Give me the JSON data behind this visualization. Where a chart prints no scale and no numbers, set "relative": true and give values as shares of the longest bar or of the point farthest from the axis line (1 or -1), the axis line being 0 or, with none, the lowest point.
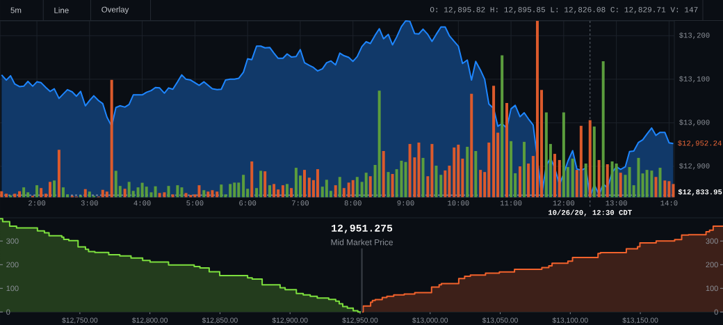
{
  "chart_data": [
    {
      "type": "area",
      "color": "#1e86ff",
      "x": [
        1.33,
        1.42,
        1.5,
        1.58,
        1.67,
        1.75,
        1.83,
        1.92,
        2,
        2.08,
        2.17,
        2.25,
        2.33,
        2.42,
        2.5,
        2.58,
        2.67,
        2.75,
        2.83,
        2.92,
        3,
        3.08,
        3.17,
        3.25,
        3.33,
        3.42,
        3.5,
        3.58,
        3.67,
        3.75,
        3.83,
        3.92,
        4,
        4.08,
        4.17,
        4.25,
        4.33,
        4.42,
        4.5,
        4.58,
        4.67,
        4.75,
        4.83,
        4.92,
        5,
        5.08,
        5.17,
        5.25,
        5.33,
        5.42,
        5.5,
        5.58,
        5.67,
        5.75,
        5.83,
        5.92,
        6,
        6.08,
        6.17,
        6.25,
        6.33,
        6.42,
        6.5,
        6.58,
        6.67,
        6.75,
        6.83,
        6.92,
        7,
        7.08,
        7.17,
        7.25,
        7.33,
        7.42,
        7.5,
        7.58,
        7.67,
        7.75,
        7.83,
        7.92,
        8,
        8.08,
        8.17,
        8.25,
        8.33,
        8.42,
        8.5,
        8.58,
        8.67,
        8.75,
        8.83,
        8.92,
        9,
        9.08,
        9.17,
        9.25,
        9.33,
        9.42,
        9.5,
        9.58,
        9.67,
        9.75,
        9.83,
        9.92,
        10,
        10.08,
        10.17,
        10.25,
        10.33,
        10.42,
        10.5,
        10.58,
        10.67,
        10.75,
        10.83,
        10.92,
        11,
        11.08,
        11.17,
        11.25,
        11.33,
        11.42,
        11.5,
        11.58,
        11.67,
        11.75,
        11.83,
        11.92,
        12,
        12.08,
        12.17,
        12.25,
        12.33,
        12.42,
        12.5,
        12.58,
        12.67,
        12.75,
        12.83,
        12.92,
        13,
        13.08,
        13.17,
        13.25,
        13.33,
        13.42,
        13.5,
        13.58,
        13.67,
        13.75,
        13.83,
        13.92,
        14,
        14.08
      ],
      "values": [
        13110,
        13098,
        13108,
        13089,
        13083,
        13084,
        13095,
        13084,
        13094,
        13092,
        13081,
        13072,
        13078,
        13056,
        13066,
        13076,
        13071,
        13061,
        13072,
        13039,
        13051,
        13062,
        13051,
        13044,
        13013,
        12992,
        13035,
        13039,
        13036,
        13042,
        13064,
        13064,
        13064,
        13070,
        13074,
        13081,
        13080,
        13068,
        13080,
        13077,
        13094,
        13110,
        13100,
        13098,
        13092,
        13086,
        13094,
        13086,
        13078,
        13076,
        13077,
        13098,
        13100,
        13100,
        13102,
        13116,
        13147,
        13145,
        13176,
        13176,
        13172,
        13173,
        13160,
        13148,
        13148,
        13158,
        13151,
        13152,
        13168,
        13138,
        13132,
        13127,
        13119,
        13124,
        13138,
        13142,
        13133,
        13160,
        13154,
        13150,
        13141,
        13152,
        13175,
        13186,
        13182,
        13201,
        13216,
        13193,
        13203,
        13179,
        13197,
        13221,
        13234,
        13233,
        13205,
        13204,
        13215,
        13203,
        13187,
        13203,
        13220,
        13220,
        13200,
        13187,
        13176,
        13136,
        13144,
        13098,
        13141,
        13121,
        13100,
        13043,
        13033,
        12992,
        12998,
        12988,
        13032,
        13040,
        13014,
        13023,
        13009,
        12995,
        12918,
        12834,
        12902,
        12919,
        12896,
        12858,
        12883,
        12912,
        12936,
        12894,
        12891,
        12896,
        12830,
        12858,
        12835,
        12859,
        12851,
        12886,
        12899,
        12893,
        12899,
        12934,
        12935,
        12955,
        12961,
        12974,
        12988,
        12971,
        12978,
        12978,
        12954,
        12952.24
      ],
      "xlim": [
        1.3,
        14.1
      ],
      "ylim": [
        12829,
        13234
      ],
      "xticks": [
        {
          "value": 2,
          "label": "2:00"
        },
        {
          "value": 3,
          "label": "3:00"
        },
        {
          "value": 4,
          "label": "4:00"
        },
        {
          "value": 5,
          "label": "5:00"
        },
        {
          "value": 6,
          "label": "6:00"
        },
        {
          "value": 7,
          "label": "7:00"
        },
        {
          "value": 8,
          "label": "8:00"
        },
        {
          "value": 9,
          "label": "9:00"
        },
        {
          "value": 10,
          "label": "10:00"
        },
        {
          "value": 11,
          "label": "11:00"
        },
        {
          "value": 12,
          "label": "12:00"
        },
        {
          "value": 13,
          "label": "13:00"
        },
        {
          "value": 14,
          "label": "14:0"
        }
      ],
      "yticks": [
        {
          "value": 12900,
          "label": "$12,900"
        },
        {
          "value": 13000,
          "label": "$13,000"
        },
        {
          "value": 13100,
          "label": "$13,100"
        },
        {
          "value": 13200,
          "label": "$13,200"
        }
      ],
      "grid": true,
      "ref_lines": [
        {
          "axis": "y",
          "value": 12833.95,
          "label": "$12,833.95",
          "color": "#b9bdc3",
          "line_style": "dashed"
        },
        {
          "axis": "x",
          "value": 12.5,
          "label": "10/26/20, 12:30 CDT",
          "color": "#5f6670",
          "line_style": "dashed"
        }
      ],
      "annotations": [
        "5m",
        "Line",
        "Overlay",
        "O: 12,895.82 H: 12,895.85 L: 12,826.08 C: 12,829.71 V: 147",
        {
          "text": "$12,952.24",
          "x": 14.08,
          "y": 12952.24
        }
      ]
    },
    {
      "type": "bar",
      "relative": true,
      "x": [
        1.33,
        1.42,
        1.5,
        1.58,
        1.67,
        1.75,
        1.83,
        1.92,
        2,
        2.08,
        2.17,
        2.25,
        2.33,
        2.42,
        2.5,
        2.58,
        2.67,
        2.75,
        2.83,
        2.92,
        3,
        3.08,
        3.17,
        3.25,
        3.33,
        3.42,
        3.5,
        3.58,
        3.67,
        3.75,
        3.83,
        3.92,
        4,
        4.08,
        4.17,
        4.25,
        4.33,
        4.42,
        4.5,
        4.58,
        4.67,
        4.75,
        4.83,
        4.92,
        5,
        5.08,
        5.17,
        5.25,
        5.33,
        5.42,
        5.5,
        5.58,
        5.67,
        5.75,
        5.83,
        5.92,
        6,
        6.08,
        6.17,
        6.25,
        6.33,
        6.42,
        6.5,
        6.58,
        6.67,
        6.75,
        6.83,
        6.92,
        7,
        7.08,
        7.17,
        7.25,
        7.33,
        7.42,
        7.5,
        7.58,
        7.67,
        7.75,
        7.83,
        7.92,
        8,
        8.08,
        8.17,
        8.25,
        8.33,
        8.42,
        8.5,
        8.58,
        8.67,
        8.75,
        8.83,
        8.92,
        9,
        9.08,
        9.17,
        9.25,
        9.33,
        9.42,
        9.5,
        9.58,
        9.67,
        9.75,
        9.83,
        9.92,
        10,
        10.08,
        10.17,
        10.25,
        10.33,
        10.42,
        10.5,
        10.58,
        10.67,
        10.75,
        10.83,
        10.92,
        11,
        11.08,
        11.17,
        11.25,
        11.33,
        11.42,
        11.5,
        11.58,
        11.67,
        11.75,
        11.83,
        11.92,
        12,
        12.08,
        12.17,
        12.25,
        12.33,
        12.42,
        12.5,
        12.58,
        12.67,
        12.75,
        12.83,
        12.92,
        13,
        13.08,
        13.17,
        13.25,
        13.33,
        13.42,
        13.5,
        13.58,
        13.67,
        13.75,
        13.83,
        13.92,
        14,
        14.08
      ],
      "values": [
        0.034,
        0.02,
        0.011,
        0.02,
        0.034,
        0.056,
        0.028,
        0.008,
        0.068,
        0.052,
        0.02,
        0.087,
        0.095,
        0.269,
        0.056,
        0.016,
        0.008,
        0.004,
        0.011,
        0.046,
        0.032,
        0.008,
        0.004,
        0.042,
        0.032,
        0.666,
        0.15,
        0.064,
        0.048,
        0.087,
        0.036,
        0.056,
        0.082,
        0.06,
        0.028,
        0.062,
        0.024,
        0.028,
        0.064,
        0.016,
        0.068,
        0.056,
        0.024,
        0.013,
        0.016,
        0.068,
        0.04,
        0.032,
        0.04,
        0.032,
        0.072,
        0.016,
        0.075,
        0.083,
        0.083,
        0.127,
        0.048,
        0.203,
        0.052,
        0.15,
        0.147,
        0.068,
        0.075,
        0.044,
        0.068,
        0.075,
        0.052,
        0.167,
        0.123,
        0.155,
        0.111,
        0.097,
        0.159,
        0.06,
        0.099,
        0.036,
        0.068,
        0.115,
        0.052,
        0.083,
        0.097,
        0.115,
        0.087,
        0.139,
        0.119,
        0.183,
        0.604,
        0.262,
        0.143,
        0.132,
        0.159,
        0.207,
        0.2,
        0.302,
        0.226,
        0.31,
        0.223,
        0.119,
        0.302,
        0.179,
        0.127,
        0.152,
        0.179,
        0.282,
        0.298,
        0.219,
        0.286,
        0.587,
        0.262,
        0.155,
        0.143,
        0.31,
        0.632,
        0.366,
        0.805,
        0.534,
        0.318,
        0.136,
        0.175,
        0.314,
        0.191,
        0.234,
        1,
        0.608,
        0.481,
        0.302,
        0.246,
        0.211,
        0.481,
        0.171,
        0.219,
        0.155,
        0.405,
        0.191,
        0.437,
        0.401,
        0.211,
        0.771,
        0.187,
        0.203,
        0.191,
        0.139,
        0.127,
        0.171,
        0.068,
        0.223,
        0.135,
        0.155,
        0.151,
        0.115,
        0.167,
        0.095,
        0.091,
        0.075
      ],
      "colors": [
        "#dc5a2c",
        "#dc5a2c",
        "#5b9d3d",
        "#dc5a2c",
        "#dc5a2c",
        "#5b9d3d",
        "#5b9d3d",
        "#dc5a2c",
        "#5b9d3d",
        "#dc5a2c",
        "#dc5a2c",
        "#dc5a2c",
        "#5b9d3d",
        "#dc5a2c",
        "#5b9d3d",
        "#5b9d3d",
        "#dc5a2c",
        "#dc5a2c",
        "#5b9d3d",
        "#dc5a2c",
        "#5b9d3d",
        "#5b9d3d",
        "#dc5a2c",
        "#dc5a2c",
        "#dc5a2c",
        "#dc5a2c",
        "#5b9d3d",
        "#5b9d3d",
        "#dc5a2c",
        "#5b9d3d",
        "#5b9d3d",
        "#5b9d3d",
        "#5b9d3d",
        "#5b9d3d",
        "#5b9d3d",
        "#5b9d3d",
        "#dc5a2c",
        "#dc5a2c",
        "#5b9d3d",
        "#dc5a2c",
        "#5b9d3d",
        "#5b9d3d",
        "#dc5a2c",
        "#dc5a2c",
        "#dc5a2c",
        "#dc5a2c",
        "#5b9d3d",
        "#dc5a2c",
        "#dc5a2c",
        "#dc5a2c",
        "#5b9d3d",
        "#5b9d3d",
        "#5b9d3d",
        "#5b9d3d",
        "#5b9d3d",
        "#5b9d3d",
        "#5b9d3d",
        "#dc5a2c",
        "#5b9d3d",
        "#5b9d3d",
        "#dc5a2c",
        "#5b9d3d",
        "#dc5a2c",
        "#dc5a2c",
        "#dc5a2c",
        "#5b9d3d",
        "#dc5a2c",
        "#5b9d3d",
        "#5b9d3d",
        "#dc5a2c",
        "#dc5a2c",
        "#dc5a2c",
        "#dc5a2c",
        "#5b9d3d",
        "#5b9d3d",
        "#5b9d3d",
        "#dc5a2c",
        "#5b9d3d",
        "#dc5a2c",
        "#dc5a2c",
        "#dc5a2c",
        "#5b9d3d",
        "#5b9d3d",
        "#5b9d3d",
        "#dc5a2c",
        "#5b9d3d",
        "#5b9d3d",
        "#dc5a2c",
        "#5b9d3d",
        "#dc5a2c",
        "#5b9d3d",
        "#5b9d3d",
        "#5b9d3d",
        "#dc5a2c",
        "#dc5a2c",
        "#dc5a2c",
        "#5b9d3d",
        "#dc5a2c",
        "#dc5a2c",
        "#5b9d3d",
        "#5b9d3d",
        "#dc5a2c",
        "#dc5a2c",
        "#dc5a2c",
        "#dc5a2c",
        "#dc5a2c",
        "#5b9d3d",
        "#dc5a2c",
        "#5b9d3d",
        "#dc5a2c",
        "#dc5a2c",
        "#dc5a2c",
        "#dc5a2c",
        "#dc5a2c",
        "#5b9d3d",
        "#dc5a2c",
        "#5b9d3d",
        "#5b9d3d",
        "#dc5a2c",
        "#5b9d3d",
        "#dc5a2c",
        "#dc5a2c",
        "#dc5a2c",
        "#dc5a2c",
        "#5b9d3d",
        "#5b9d3d",
        "#dc5a2c",
        "#dc5a2c",
        "#5b9d3d",
        "#5b9d3d",
        "#5b9d3d",
        "#dc5a2c",
        "#dc5a2c",
        "#5b9d3d",
        "#dc5a2c",
        "#5b9d3d",
        "#dc5a2c",
        "#5b9d3d",
        "#dc5a2c",
        "#5b9d3d",
        "#5b9d3d",
        "#dc5a2c",
        "#5b9d3d",
        "#5b9d3d",
        "#5b9d3d",
        "#5b9d3d",
        "#5b9d3d",
        "#5b9d3d",
        "#5b9d3d",
        "#dc5a2c",
        "#5b9d3d",
        "#dc5a2c",
        "#dc5a2c",
        "#dc5a2c"
      ],
      "xlim": [
        1.3,
        14.1
      ],
      "tick_labels": false
    },
    {
      "type": "step",
      "series": [
        {
          "color": "#7ddf3e",
          "x": [
            12693,
            12694.9,
            12699.9,
            12704.8,
            12719.7,
            12724.7,
            12728,
            12737.1,
            12738.5,
            12742.1,
            12748.7,
            12754,
            12756.2,
            12760.7,
            12770.6,
            12778.5,
            12786.5,
            12794.8,
            12800.1,
            12813.3,
            12831.6,
            12835.7,
            12842.3,
            12849.8,
            12869.7,
            12873,
            12880.1,
            12892.9,
            12896.5,
            12904.5,
            12909.4,
            12914.4,
            12919.4,
            12927.6,
            12932.6,
            12935.1,
            12937.6,
            12940.9,
            12945.1,
            12948.4,
            12950.5
          ],
          "values": [
            394,
            382,
            363,
            355,
            343,
            335,
            322,
            316,
            307,
            302,
            275,
            265,
            255,
            252,
            242,
            237,
            228,
            218,
            211,
            199,
            192,
            186,
            170,
            154,
            144,
            139,
            115,
            102,
            94,
            78,
            72,
            66,
            59,
            53,
            46,
            35,
            23,
            16,
            5,
            0,
            0
          ]
        },
        {
          "color": "#f2622c",
          "x": [
            12951.5,
            12952.2,
            12957.5,
            12958.8,
            12960.8,
            12965.8,
            12969.1,
            12974,
            12981.5,
            12989,
            13001,
            13006.4,
            13008,
            13020.4,
            13024.6,
            13028.7,
            13039.5,
            13049.4,
            13060.2,
            13079.7,
            13084.7,
            13087,
            13098.3,
            13101.6,
            13119.8,
            13121.5,
            13140,
            13148,
            13149.7,
            13161.3,
            13174.5,
            13179.5,
            13184.4,
            13196.9,
            13199.4,
            13202,
            13209
          ],
          "values": [
            0,
            25,
            41,
            49,
            52,
            61,
            66,
            72,
            76,
            82,
            105,
            115,
            120,
            141,
            151,
            156,
            164,
            169,
            180,
            188,
            195,
            206,
            215,
            230,
            247,
            251,
            267,
            276,
            292,
            300,
            306,
            325,
            327,
            339,
            346,
            363,
            363
          ]
        }
      ],
      "xlim": [
        12693,
        13209
      ],
      "ylim": [
        0,
        398
      ],
      "y2lim": [
        0,
        398
      ],
      "xticks": [
        {
          "value": 12750,
          "label": "$12,750.00"
        },
        {
          "value": 12800,
          "label": "$12,800.00"
        },
        {
          "value": 12850,
          "label": "$12,850.00"
        },
        {
          "value": 12900,
          "label": "$12,900.00"
        },
        {
          "value": 12950,
          "label": "$12,950.00"
        },
        {
          "value": 13000,
          "label": "$13,000.00"
        },
        {
          "value": 13050,
          "label": "$13,050.00"
        },
        {
          "value": 13100,
          "label": "$13,100.00"
        },
        {
          "value": 13150,
          "label": "$13,150.00"
        }
      ],
      "yticks": [
        0,
        100,
        200,
        300
      ],
      "y2ticks": [
        0,
        100,
        200,
        300
      ],
      "ref_lines": [
        {
          "axis": "x",
          "value": 12951.275,
          "label": "12,951.275",
          "color": "#3a4048"
        }
      ],
      "annotations": [
        "Mid Market Price"
      ]
    }
  ]
}
